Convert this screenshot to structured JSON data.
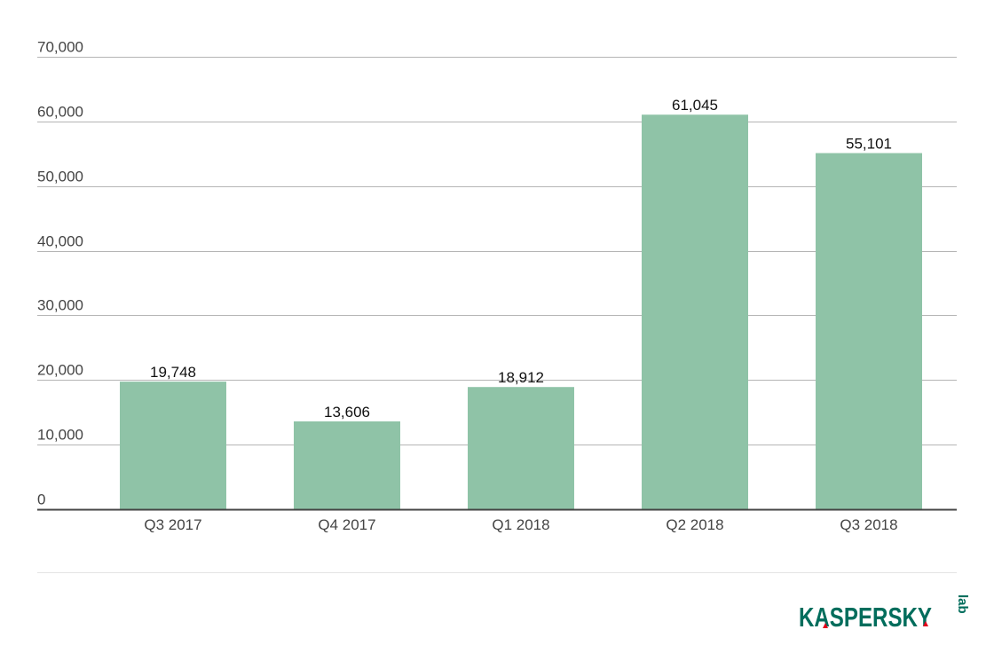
{
  "chart_data": {
    "type": "bar",
    "title": "",
    "xlabel": "",
    "ylabel": "",
    "categories": [
      "Q3 2017",
      "Q4 2017",
      "Q1 2018",
      "Q2 2018",
      "Q3 2018"
    ],
    "values": [
      19748,
      13606,
      18912,
      61045,
      55101
    ],
    "value_labels": [
      "19,748",
      "13,606",
      "18,912",
      "61,045",
      "55,101"
    ],
    "ylim": [
      0,
      70000
    ],
    "yticks": [
      0,
      10000,
      20000,
      30000,
      40000,
      50000,
      60000,
      70000
    ],
    "ytick_labels": [
      "0",
      "10,000",
      "20,000",
      "30,000",
      "40,000",
      "50,000",
      "60,000",
      "70,000"
    ],
    "grid": true,
    "bar_color": "#8fc3a7"
  },
  "logo": {
    "text": "KASPERSKY",
    "suffix": "lab",
    "color": "#006d5c",
    "accent": "#e3001b"
  }
}
